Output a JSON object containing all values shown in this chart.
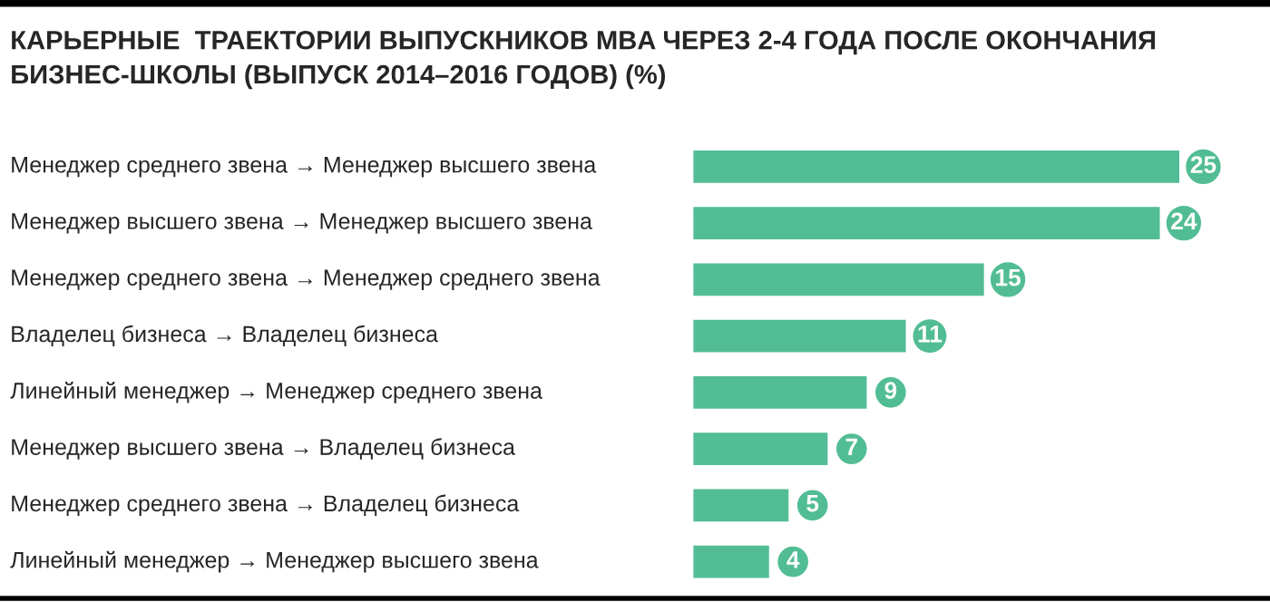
{
  "chart_data": {
    "type": "bar",
    "orientation": "horizontal",
    "title": "КАРЬЕРНЫЕ  ТРАЕКТОРИИ ВЫПУСКНИКОВ MBA ЧЕРЕЗ 2-4 ГОДА ПОСЛЕ ОКОНЧАНИЯ\nБИЗНЕС-ШКОЛЫ (ВЫПУСК 2014–2016 ГОДОВ) (%)",
    "categories": [
      "Менеджер среднего звена → Менеджер высшего звена",
      "Менеджер высшего звена → Менеджер высшего звена",
      "Менеджер среднего звена → Менеджер среднего звена",
      "Владелец бизнеса → Владелец бизнеса",
      "Линейный менеджер → Менеджер среднего звена",
      "Менеджер высшего звена → Владелец бизнеса",
      "Менеджер среднего звена → Владелец бизнеса",
      "Линейный менеджер → Менеджер высшего звена"
    ],
    "values": [
      25,
      24,
      15,
      11,
      9,
      7,
      5,
      4
    ],
    "color": "#52bd95",
    "data_labels": true
  }
}
